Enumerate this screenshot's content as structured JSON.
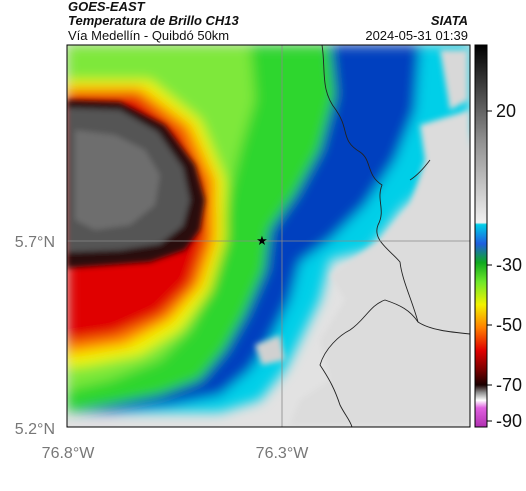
{
  "header": {
    "source": "GOES-EAST",
    "title": "Temperatura de Brillo CH13",
    "subtitle": "Vía Medellín - Quibdó 50km",
    "org": "SIATA",
    "datetime": "2024-05-31 01:39"
  },
  "map": {
    "lat_labels": [
      "5.7°N",
      "5.2°N"
    ],
    "lon_labels": [
      "76.8°W",
      "76.3°W"
    ],
    "marker": "star-icon"
  },
  "colorbar": {
    "ticks": [
      "20",
      "-30",
      "-50",
      "-70",
      "-90"
    ],
    "colors": {
      "top": "#000000",
      "gray_high": "#ffffff",
      "cyan": "#00cfe8",
      "blue": "#003fbf",
      "green": "#2fd62f",
      "yellow": "#f2f200",
      "orange": "#ff8000",
      "red": "#e00000",
      "black_band": "#1a0000",
      "magenta": "#c040c0"
    }
  }
}
